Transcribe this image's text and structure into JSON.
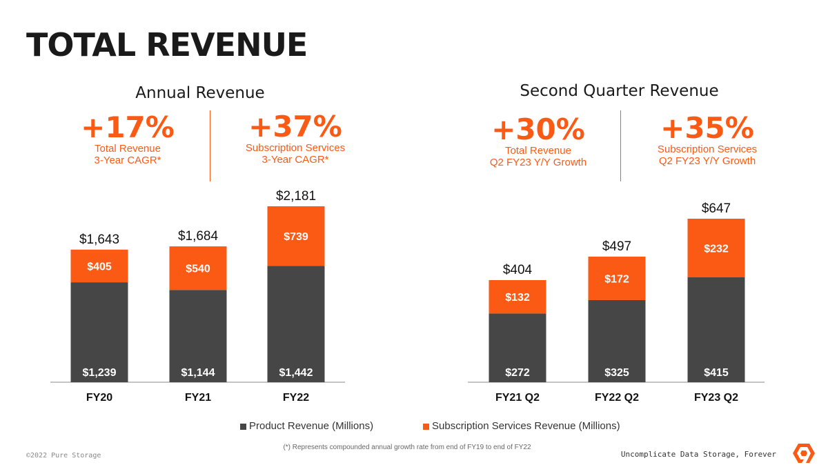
{
  "slide": {
    "title": "TOTAL REVENUE",
    "annual_title": "Annual Revenue",
    "quarter_title": "Second Quarter Revenue",
    "footnote": "(*) Represents compounded annual growth rate from end of FY19 to end of FY22",
    "copyright": "©2022 Pure Storage",
    "tagline": "Uncomplicate Data Storage, Forever",
    "logo_icon": "pure-storage-logo-icon"
  },
  "kpis": {
    "annual_total": {
      "value": "+17%",
      "line1": "Total Revenue",
      "line2": "3-Year CAGR*"
    },
    "annual_sub": {
      "value": "+37%",
      "line1": "Subscription Services",
      "line2": "3-Year CAGR*"
    },
    "q_total": {
      "value": "+30%",
      "line1": "Total Revenue",
      "line2": "Q2 FY23 Y/Y Growth"
    },
    "q_sub": {
      "value": "+35%",
      "line1": "Subscription Services",
      "line2": "Q2 FY23 Y/Y Growth"
    }
  },
  "legend": {
    "product": "Product Revenue (Millions)",
    "subscription": "Subscription Services Revenue (Millions)"
  },
  "colors": {
    "product": "#464646",
    "subscription": "#fa5a14",
    "accent": "#fa5a14"
  },
  "chart_data": [
    {
      "type": "bar",
      "stacked": true,
      "title": "Annual Revenue",
      "categories": [
        "FY20",
        "FY21",
        "FY22"
      ],
      "series": [
        {
          "name": "Product Revenue (Millions)",
          "values": [
            1239,
            1144,
            1442
          ],
          "labels": [
            "$1,239",
            "$1,144",
            "$1,442"
          ]
        },
        {
          "name": "Subscription Services Revenue (Millions)",
          "values": [
            405,
            540,
            739
          ],
          "labels": [
            "$405",
            "$540",
            "$739"
          ]
        }
      ],
      "totals": [
        "$1,643",
        "$1,684",
        "$2,181"
      ],
      "total_values": [
        1643,
        1684,
        2181
      ],
      "ylim": [
        0,
        2181
      ]
    },
    {
      "type": "bar",
      "stacked": true,
      "title": "Second Quarter Revenue",
      "categories": [
        "FY21 Q2",
        "FY22 Q2",
        "FY23 Q2"
      ],
      "series": [
        {
          "name": "Product Revenue (Millions)",
          "values": [
            272,
            325,
            415
          ],
          "labels": [
            "$272",
            "$325",
            "$415"
          ]
        },
        {
          "name": "Subscription Services Revenue (Millions)",
          "values": [
            132,
            172,
            232
          ],
          "labels": [
            "$132",
            "$172",
            "$232"
          ]
        }
      ],
      "totals": [
        "$404",
        "$497",
        "$647"
      ],
      "total_values": [
        404,
        497,
        647
      ],
      "ylim": [
        0,
        647
      ]
    }
  ]
}
